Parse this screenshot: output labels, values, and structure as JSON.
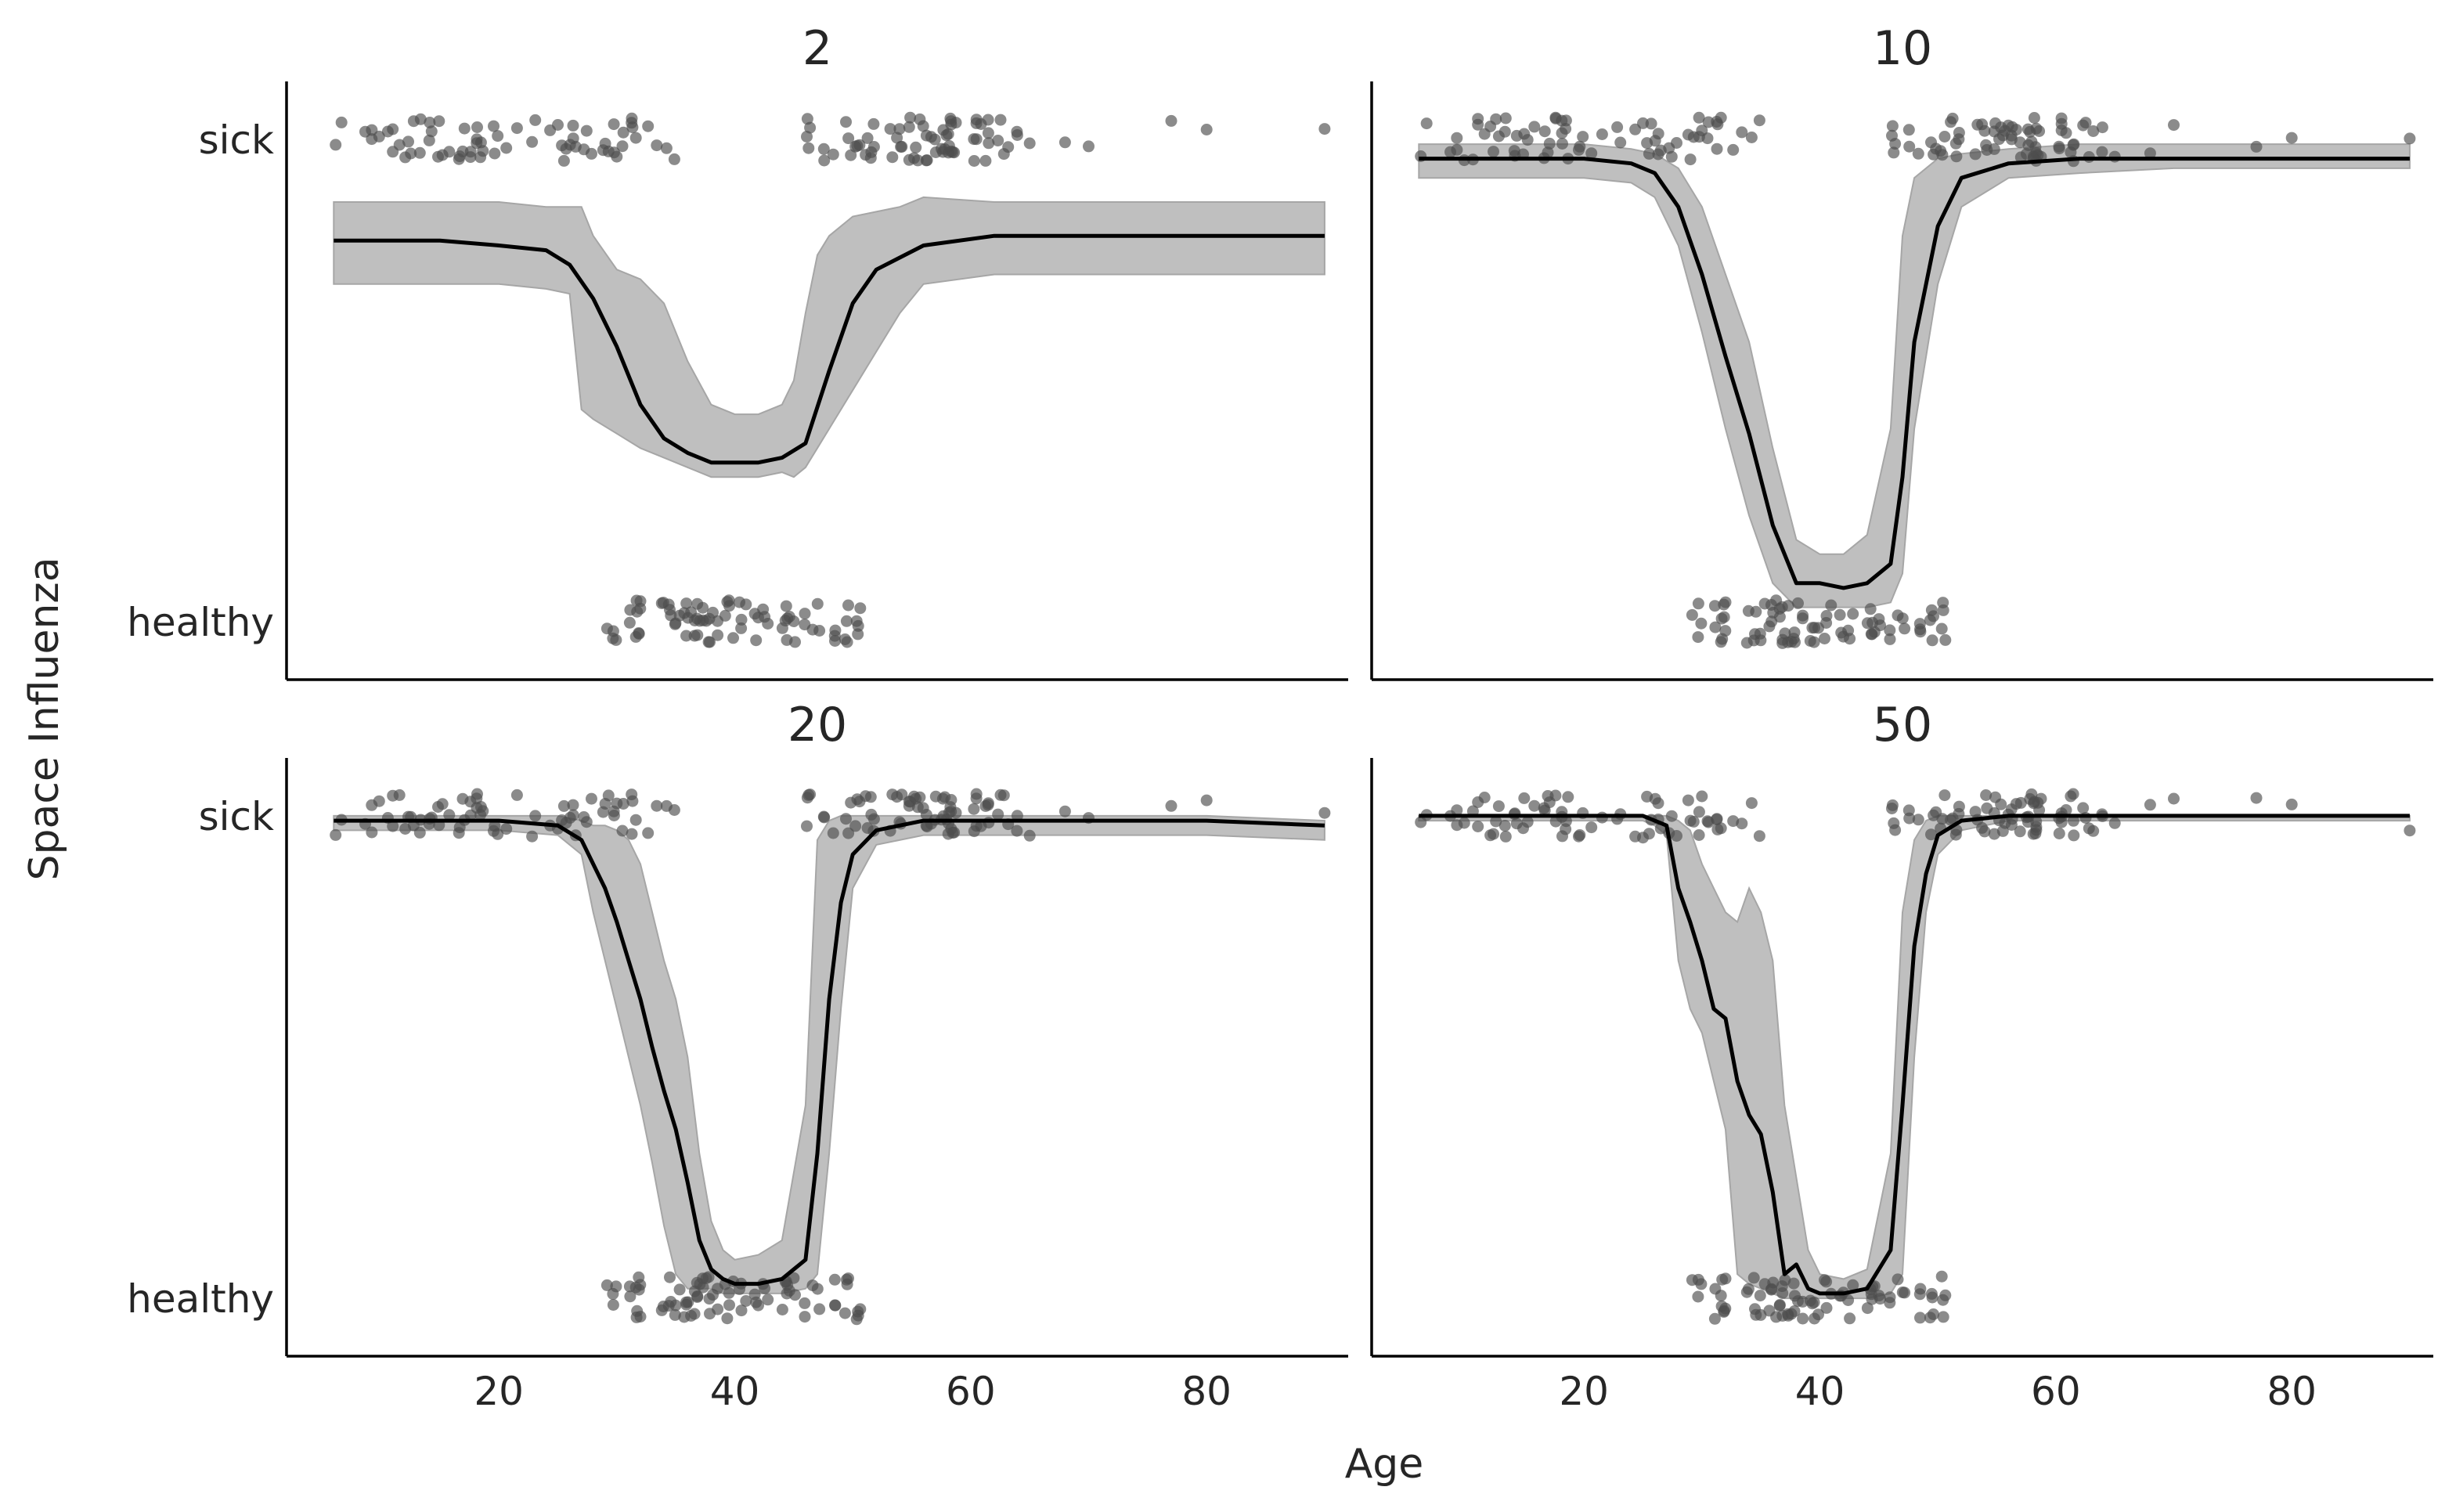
{
  "figure": {
    "xlabel": "Age",
    "ylabel": "Space Influenza"
  },
  "colors": {
    "band": "#bfbfbf",
    "band_edge": "#a6a6a6",
    "line": "#000000",
    "points": "#4d4d4d",
    "axis": "#000000",
    "text": "#262626"
  },
  "chart_data": [
    {
      "type": "line",
      "title": "2",
      "xlim": [
        2,
        92
      ],
      "ylim": [
        -0.12,
        1.12
      ],
      "yticks": [
        {
          "value": 0,
          "label": "healthy"
        },
        {
          "value": 1,
          "label": "sick"
        }
      ],
      "xticks": [],
      "line": {
        "x": [
          6,
          15,
          20,
          24,
          26,
          28,
          30,
          32,
          34,
          36,
          38,
          40,
          42,
          44,
          46,
          48,
          50,
          52,
          56,
          62,
          70,
          80,
          90
        ],
        "y": [
          0.79,
          0.79,
          0.78,
          0.77,
          0.74,
          0.67,
          0.57,
          0.45,
          0.38,
          0.35,
          0.33,
          0.33,
          0.33,
          0.34,
          0.37,
          0.52,
          0.66,
          0.73,
          0.78,
          0.8,
          0.8,
          0.8,
          0.8
        ]
      },
      "band": {
        "x": [
          6,
          15,
          20,
          24,
          26,
          27,
          28,
          30,
          32,
          34,
          36,
          38,
          40,
          42,
          44,
          45,
          46,
          47,
          48,
          50,
          52,
          54,
          56,
          62,
          70,
          80,
          90
        ],
        "lower": [
          0.7,
          0.7,
          0.7,
          0.69,
          0.68,
          0.44,
          0.42,
          0.39,
          0.36,
          0.34,
          0.32,
          0.3,
          0.3,
          0.3,
          0.31,
          0.3,
          0.32,
          0.36,
          0.4,
          0.48,
          0.56,
          0.64,
          0.7,
          0.72,
          0.72,
          0.72,
          0.72
        ],
        "upper": [
          0.87,
          0.87,
          0.87,
          0.86,
          0.86,
          0.86,
          0.8,
          0.73,
          0.71,
          0.66,
          0.54,
          0.45,
          0.43,
          0.43,
          0.45,
          0.5,
          0.64,
          0.76,
          0.8,
          0.84,
          0.85,
          0.86,
          0.88,
          0.87,
          0.87,
          0.87,
          0.87
        ]
      }
    },
    {
      "type": "line",
      "title": "10",
      "xlim": [
        2,
        92
      ],
      "ylim": [
        -0.12,
        1.12
      ],
      "yticks": [],
      "xticks": [],
      "line": {
        "x": [
          6,
          20,
          24,
          26,
          28,
          30,
          32,
          34,
          36,
          38,
          40,
          42,
          44,
          46,
          47,
          48,
          50,
          52,
          56,
          62,
          70,
          80,
          90
        ],
        "y": [
          0.96,
          0.96,
          0.95,
          0.93,
          0.86,
          0.72,
          0.55,
          0.39,
          0.2,
          0.08,
          0.08,
          0.07,
          0.08,
          0.12,
          0.3,
          0.58,
          0.82,
          0.92,
          0.95,
          0.96,
          0.96,
          0.96,
          0.96
        ]
      },
      "band": {
        "x": [
          6,
          20,
          24,
          26,
          28,
          30,
          32,
          34,
          36,
          38,
          40,
          42,
          44,
          46,
          47,
          48,
          50,
          52,
          56,
          62,
          70,
          80,
          90
        ],
        "lower": [
          0.92,
          0.92,
          0.91,
          0.88,
          0.78,
          0.6,
          0.4,
          0.22,
          0.08,
          0.03,
          0.03,
          0.03,
          0.03,
          0.04,
          0.1,
          0.4,
          0.7,
          0.86,
          0.92,
          0.93,
          0.94,
          0.94,
          0.94
        ],
        "upper": [
          0.99,
          0.99,
          0.98,
          0.97,
          0.94,
          0.86,
          0.72,
          0.58,
          0.36,
          0.17,
          0.14,
          0.14,
          0.18,
          0.4,
          0.8,
          0.92,
          0.96,
          0.97,
          0.98,
          0.99,
          0.99,
          0.99,
          0.99
        ]
      },
      "points_sick_range": [
        [
          6,
          35
        ],
        [
          46,
          90
        ]
      ],
      "points_healthy_range": [
        29,
        51
      ]
    },
    {
      "type": "line",
      "title": "20",
      "xlim": [
        2,
        92
      ],
      "ylim": [
        -0.12,
        1.12
      ],
      "yticks": [
        {
          "value": 0,
          "label": "healthy"
        },
        {
          "value": 1,
          "label": "sick"
        }
      ],
      "xticks": [
        20,
        40,
        60,
        80
      ],
      "line": {
        "x": [
          6,
          20,
          25,
          27,
          28,
          29,
          30,
          31,
          32,
          33,
          34,
          35,
          36,
          37,
          38,
          39,
          40,
          42,
          44,
          46,
          47,
          48,
          49,
          50,
          52,
          56,
          62,
          70,
          80,
          90
        ],
        "y": [
          0.99,
          0.99,
          0.98,
          0.95,
          0.9,
          0.85,
          0.78,
          0.7,
          0.62,
          0.52,
          0.43,
          0.35,
          0.24,
          0.12,
          0.06,
          0.04,
          0.03,
          0.03,
          0.04,
          0.08,
          0.3,
          0.62,
          0.82,
          0.92,
          0.97,
          0.99,
          0.99,
          0.99,
          0.99,
          0.98
        ]
      },
      "band": {
        "x": [
          6,
          20,
          25,
          27,
          28,
          29,
          30,
          31,
          32,
          33,
          34,
          35,
          36,
          37,
          38,
          39,
          40,
          42,
          44,
          46,
          47,
          48,
          49,
          50,
          52,
          56,
          62,
          70,
          80,
          90
        ],
        "lower": [
          0.97,
          0.97,
          0.96,
          0.92,
          0.8,
          0.7,
          0.6,
          0.5,
          0.4,
          0.28,
          0.15,
          0.05,
          0.02,
          0.02,
          0.02,
          0.01,
          0.01,
          0.01,
          0.01,
          0.02,
          0.05,
          0.3,
          0.6,
          0.85,
          0.94,
          0.96,
          0.96,
          0.96,
          0.96,
          0.95
        ],
        "upper": [
          1.0,
          1.0,
          1.0,
          0.99,
          0.98,
          0.98,
          0.97,
          0.95,
          0.9,
          0.8,
          0.7,
          0.62,
          0.5,
          0.3,
          0.16,
          0.1,
          0.08,
          0.09,
          0.12,
          0.4,
          0.95,
          0.99,
          1.0,
          1.0,
          1.0,
          1.0,
          1.0,
          1.0,
          1.0,
          0.99
        ]
      }
    },
    {
      "type": "line",
      "title": "50",
      "xlim": [
        2,
        92
      ],
      "ylim": [
        -0.12,
        1.12
      ],
      "yticks": [],
      "xticks": [
        20,
        40,
        60,
        80
      ],
      "line": {
        "x": [
          6,
          20,
          25,
          26,
          27,
          28,
          29,
          30,
          31,
          32,
          33,
          34,
          35,
          36,
          37,
          38,
          39,
          40,
          42,
          44,
          46,
          47,
          48,
          49,
          50,
          52,
          56,
          62,
          70,
          80,
          90
        ],
        "y": [
          1.0,
          1.0,
          1.0,
          0.99,
          0.98,
          0.85,
          0.78,
          0.7,
          0.6,
          0.58,
          0.45,
          0.38,
          0.34,
          0.22,
          0.05,
          0.07,
          0.02,
          0.01,
          0.01,
          0.02,
          0.1,
          0.4,
          0.73,
          0.88,
          0.96,
          0.99,
          1.0,
          1.0,
          1.0,
          1.0,
          1.0
        ]
      },
      "band": {
        "x": [
          6,
          20,
          25,
          26,
          27,
          28,
          29,
          30,
          31,
          32,
          33,
          34,
          35,
          36,
          37,
          38,
          39,
          40,
          42,
          44,
          46,
          47,
          48,
          49,
          50,
          52,
          56,
          62,
          70,
          80,
          90
        ],
        "lower": [
          0.99,
          0.99,
          0.99,
          0.98,
          0.96,
          0.7,
          0.6,
          0.55,
          0.45,
          0.35,
          0.05,
          0.03,
          0.02,
          0.01,
          0.0,
          0.0,
          0.0,
          0.0,
          0.0,
          0.0,
          0.01,
          0.05,
          0.5,
          0.8,
          0.92,
          0.97,
          0.99,
          0.99,
          0.99,
          0.99,
          0.99
        ],
        "upper": [
          1.0,
          1.0,
          1.0,
          1.0,
          1.0,
          0.99,
          0.97,
          0.9,
          0.85,
          0.8,
          0.78,
          0.85,
          0.8,
          0.7,
          0.4,
          0.25,
          0.1,
          0.05,
          0.04,
          0.06,
          0.3,
          0.8,
          0.95,
          0.99,
          1.0,
          1.0,
          1.0,
          1.0,
          1.0,
          1.0,
          1.0
        ]
      }
    }
  ]
}
